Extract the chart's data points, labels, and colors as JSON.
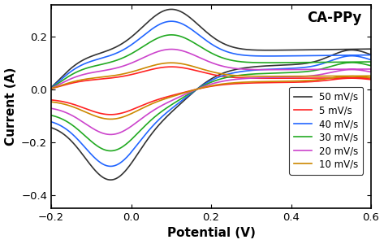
{
  "title": "CA-PPy",
  "xlabel": "Potential (V)",
  "ylabel": "Current (A)",
  "xlim": [
    -0.2,
    0.6
  ],
  "ylim": [
    -0.45,
    0.32
  ],
  "xticks": [
    -0.2,
    0.0,
    0.2,
    0.4,
    0.6
  ],
  "yticks": [
    -0.4,
    -0.2,
    0.0,
    0.2
  ],
  "series": [
    {
      "label": "50 mV/s",
      "color": "#333333",
      "scale": 1.0
    },
    {
      "label": "5 mV/s",
      "color": "#ff2222",
      "scale": 0.28
    },
    {
      "label": "40 mV/s",
      "color": "#2266ff",
      "scale": 0.85
    },
    {
      "label": "30 mV/s",
      "color": "#22aa22",
      "scale": 0.68
    },
    {
      "label": "20 mV/s",
      "color": "#cc44cc",
      "scale": 0.5
    },
    {
      "label": "10 mV/s",
      "color": "#cc8800",
      "scale": 0.33
    }
  ],
  "figsize": [
    4.73,
    3.0
  ],
  "dpi": 100
}
